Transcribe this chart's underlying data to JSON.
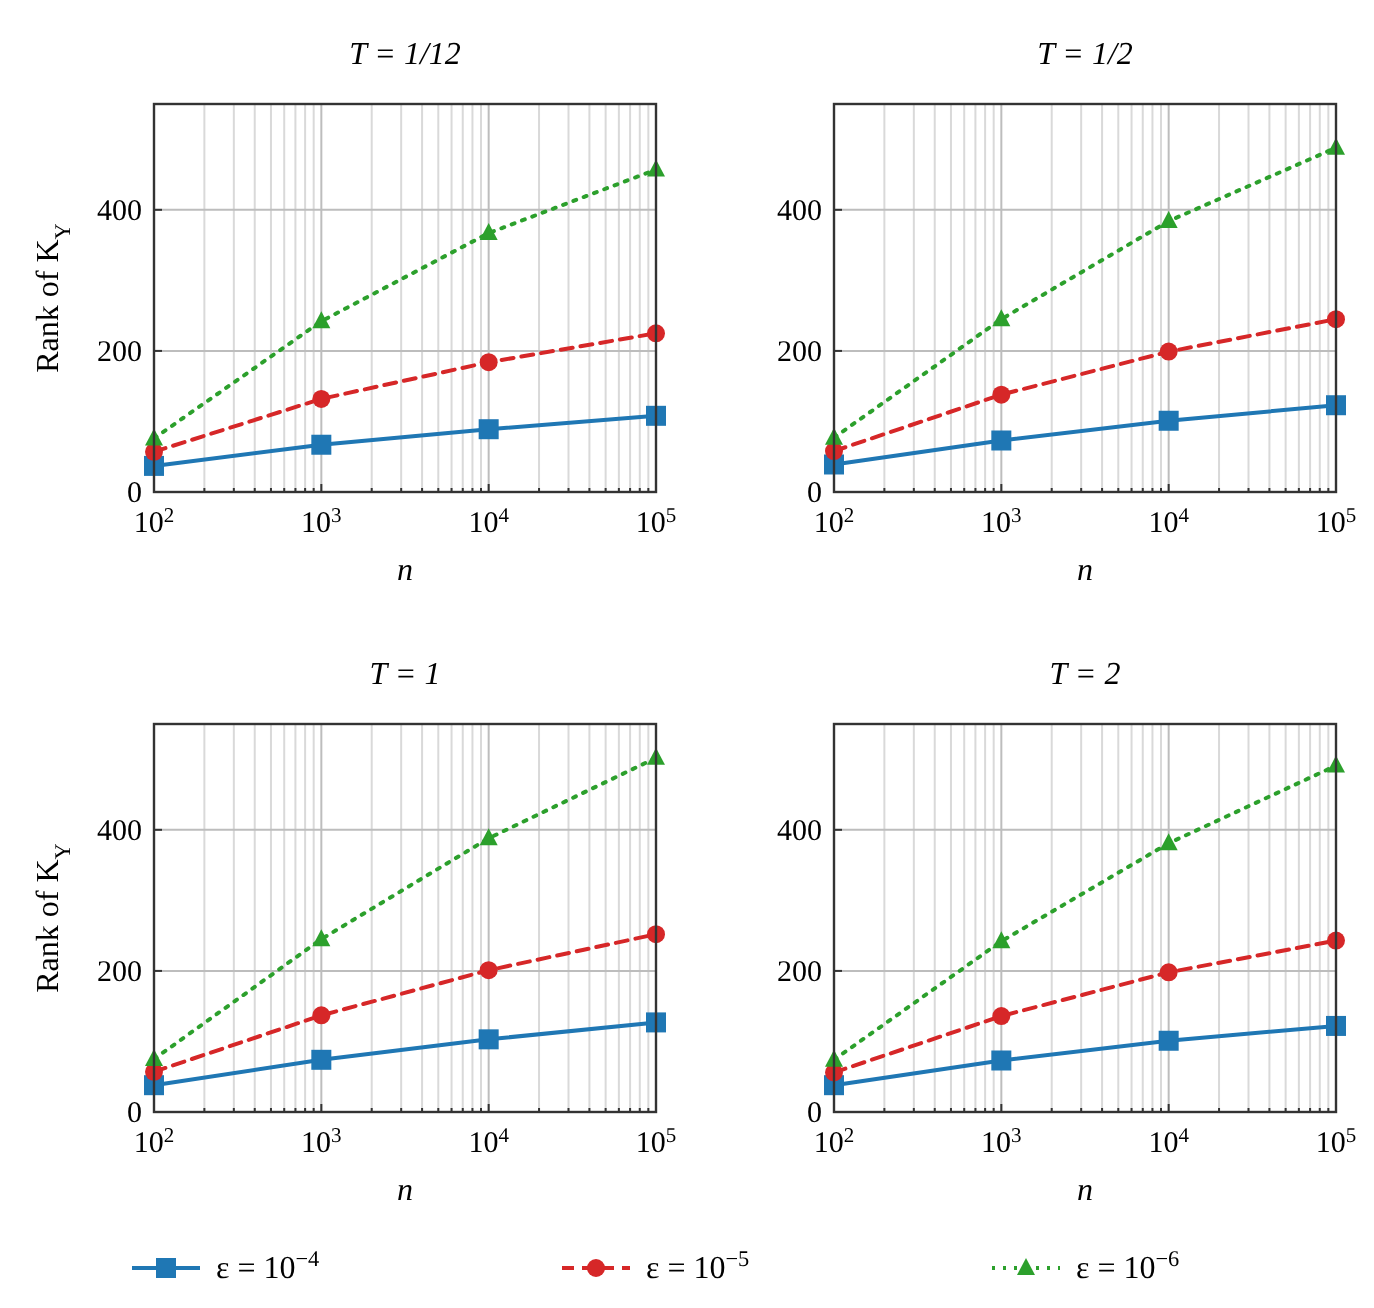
{
  "chart_data": [
    {
      "type": "line",
      "title": "T = 1/12",
      "xlabel": "n",
      "ylabel": "Rank of K$_{Y}$",
      "log": "x",
      "grid": true,
      "legend": "bottom",
      "x": [
        100,
        1000,
        10000,
        100000
      ],
      "xlim": [
        100,
        100000
      ],
      "ylim": [
        0,
        550
      ],
      "yticks": [
        0,
        200,
        400
      ],
      "xticks": [
        {
          "value": 100,
          "label": "10$^{2}$"
        },
        {
          "value": 200,
          "label": null
        },
        {
          "value": 300,
          "label": null
        },
        {
          "value": 400,
          "label": null
        },
        {
          "value": 500,
          "label": null
        },
        {
          "value": 600,
          "label": null
        },
        {
          "value": 700,
          "label": null
        },
        {
          "value": 800,
          "label": null
        },
        {
          "value": 900,
          "label": null
        },
        {
          "value": 1000,
          "label": "10$^{3}$"
        },
        {
          "value": 2000,
          "label": null
        },
        {
          "value": 3000,
          "label": null
        },
        {
          "value": 4000,
          "label": null
        },
        {
          "value": 5000,
          "label": null
        },
        {
          "value": 6000,
          "label": null
        },
        {
          "value": 7000,
          "label": null
        },
        {
          "value": 8000,
          "label": null
        },
        {
          "value": 9000,
          "label": null
        },
        {
          "value": 10000,
          "label": "10$^{4}$"
        },
        {
          "value": 20000,
          "label": null
        },
        {
          "value": 30000,
          "label": null
        },
        {
          "value": 40000,
          "label": null
        },
        {
          "value": 50000,
          "label": null
        },
        {
          "value": 60000,
          "label": null
        },
        {
          "value": 70000,
          "label": null
        },
        {
          "value": 80000,
          "label": null
        },
        {
          "value": 90000,
          "label": null
        },
        {
          "value": 100000,
          "label": "10$^{5}$"
        }
      ],
      "series": [
        {
          "name": "ε = 10$^{−4}$",
          "color": "#1f77b4",
          "marker": "square",
          "line_style": "solid",
          "values": [
            37,
            67,
            89,
            108
          ]
        },
        {
          "name": "ε = 10$^{−5}$",
          "color": "#d62728",
          "marker": "circle",
          "line_style": "dashed",
          "values": [
            57,
            132,
            184,
            225
          ]
        },
        {
          "name": "ε = 10$^{−6}$",
          "color": "#2ca02c",
          "marker": "triangle",
          "line_style": "dotted",
          "values": [
            76,
            242,
            367,
            457
          ]
        }
      ]
    },
    {
      "type": "line",
      "title": "T = 1/2",
      "xlabel": "n",
      "log": "x",
      "grid": true,
      "x": [
        100,
        1000,
        10000,
        100000
      ],
      "xlim": [
        100,
        100000
      ],
      "ylim": [
        0,
        550
      ],
      "yticks": [
        0,
        200,
        400
      ],
      "xticks": [
        {
          "value": 100,
          "label": "10$^{2}$"
        },
        {
          "value": 200,
          "label": null
        },
        {
          "value": 300,
          "label": null
        },
        {
          "value": 400,
          "label": null
        },
        {
          "value": 500,
          "label": null
        },
        {
          "value": 600,
          "label": null
        },
        {
          "value": 700,
          "label": null
        },
        {
          "value": 800,
          "label": null
        },
        {
          "value": 900,
          "label": null
        },
        {
          "value": 1000,
          "label": "10$^{3}$"
        },
        {
          "value": 2000,
          "label": null
        },
        {
          "value": 3000,
          "label": null
        },
        {
          "value": 4000,
          "label": null
        },
        {
          "value": 5000,
          "label": null
        },
        {
          "value": 6000,
          "label": null
        },
        {
          "value": 7000,
          "label": null
        },
        {
          "value": 8000,
          "label": null
        },
        {
          "value": 9000,
          "label": null
        },
        {
          "value": 10000,
          "label": "10$^{4}$"
        },
        {
          "value": 20000,
          "label": null
        },
        {
          "value": 30000,
          "label": null
        },
        {
          "value": 40000,
          "label": null
        },
        {
          "value": 50000,
          "label": null
        },
        {
          "value": 60000,
          "label": null
        },
        {
          "value": 70000,
          "label": null
        },
        {
          "value": 80000,
          "label": null
        },
        {
          "value": 90000,
          "label": null
        },
        {
          "value": 100000,
          "label": "10$^{5}$"
        }
      ],
      "series": [
        {
          "color": "#1f77b4",
          "marker": "square",
          "line_style": "solid",
          "values": [
            39,
            73,
            101,
            123
          ]
        },
        {
          "color": "#d62728",
          "marker": "circle",
          "line_style": "dashed",
          "values": [
            58,
            138,
            199,
            245
          ]
        },
        {
          "color": "#2ca02c",
          "marker": "triangle",
          "line_style": "dotted",
          "values": [
            77,
            245,
            384,
            488
          ]
        }
      ]
    },
    {
      "type": "line",
      "title": "T = 1",
      "xlabel": "n",
      "ylabel": "Rank of K$_{Y}$",
      "log": "x",
      "grid": true,
      "x": [
        100,
        1000,
        10000,
        100000
      ],
      "xlim": [
        100,
        100000
      ],
      "ylim": [
        0,
        550
      ],
      "yticks": [
        0,
        200,
        400
      ],
      "xticks": [
        {
          "value": 100,
          "label": "10$^{2}$"
        },
        {
          "value": 200,
          "label": null
        },
        {
          "value": 300,
          "label": null
        },
        {
          "value": 400,
          "label": null
        },
        {
          "value": 500,
          "label": null
        },
        {
          "value": 600,
          "label": null
        },
        {
          "value": 700,
          "label": null
        },
        {
          "value": 800,
          "label": null
        },
        {
          "value": 900,
          "label": null
        },
        {
          "value": 1000,
          "label": "10$^{3}$"
        },
        {
          "value": 2000,
          "label": null
        },
        {
          "value": 3000,
          "label": null
        },
        {
          "value": 4000,
          "label": null
        },
        {
          "value": 5000,
          "label": null
        },
        {
          "value": 6000,
          "label": null
        },
        {
          "value": 7000,
          "label": null
        },
        {
          "value": 8000,
          "label": null
        },
        {
          "value": 9000,
          "label": null
        },
        {
          "value": 10000,
          "label": "10$^{4}$"
        },
        {
          "value": 20000,
          "label": null
        },
        {
          "value": 30000,
          "label": null
        },
        {
          "value": 40000,
          "label": null
        },
        {
          "value": 50000,
          "label": null
        },
        {
          "value": 60000,
          "label": null
        },
        {
          "value": 70000,
          "label": null
        },
        {
          "value": 80000,
          "label": null
        },
        {
          "value": 90000,
          "label": null
        },
        {
          "value": 100000,
          "label": "10$^{5}$"
        }
      ],
      "series": [
        {
          "color": "#1f77b4",
          "marker": "square",
          "line_style": "solid",
          "values": [
            38,
            74,
            103,
            127
          ]
        },
        {
          "color": "#d62728",
          "marker": "circle",
          "line_style": "dashed",
          "values": [
            57,
            137,
            201,
            252
          ]
        },
        {
          "color": "#2ca02c",
          "marker": "triangle",
          "line_style": "dotted",
          "values": [
            75,
            245,
            388,
            502
          ]
        }
      ]
    },
    {
      "type": "line",
      "title": "T = 2",
      "xlabel": "n",
      "log": "x",
      "grid": true,
      "x": [
        100,
        1000,
        10000,
        100000
      ],
      "xlim": [
        100,
        100000
      ],
      "ylim": [
        0,
        550
      ],
      "yticks": [
        0,
        200,
        400
      ],
      "xticks": [
        {
          "value": 100,
          "label": "10$^{2}$"
        },
        {
          "value": 200,
          "label": null
        },
        {
          "value": 300,
          "label": null
        },
        {
          "value": 400,
          "label": null
        },
        {
          "value": 500,
          "label": null
        },
        {
          "value": 600,
          "label": null
        },
        {
          "value": 700,
          "label": null
        },
        {
          "value": 800,
          "label": null
        },
        {
          "value": 900,
          "label": null
        },
        {
          "value": 1000,
          "label": "10$^{3}$"
        },
        {
          "value": 2000,
          "label": null
        },
        {
          "value": 3000,
          "label": null
        },
        {
          "value": 4000,
          "label": null
        },
        {
          "value": 5000,
          "label": null
        },
        {
          "value": 6000,
          "label": null
        },
        {
          "value": 7000,
          "label": null
        },
        {
          "value": 8000,
          "label": null
        },
        {
          "value": 9000,
          "label": null
        },
        {
          "value": 10000,
          "label": "10$^{4}$"
        },
        {
          "value": 20000,
          "label": null
        },
        {
          "value": 30000,
          "label": null
        },
        {
          "value": 40000,
          "label": null
        },
        {
          "value": 50000,
          "label": null
        },
        {
          "value": 60000,
          "label": null
        },
        {
          "value": 70000,
          "label": null
        },
        {
          "value": 80000,
          "label": null
        },
        {
          "value": 90000,
          "label": null
        },
        {
          "value": 100000,
          "label": "10$^{5}$"
        }
      ],
      "series": [
        {
          "color": "#1f77b4",
          "marker": "square",
          "line_style": "solid",
          "values": [
            38,
            73,
            101,
            122
          ]
        },
        {
          "color": "#d62728",
          "marker": "circle",
          "line_style": "dashed",
          "values": [
            56,
            136,
            198,
            243
          ]
        },
        {
          "color": "#2ca02c",
          "marker": "triangle",
          "line_style": "dotted",
          "values": [
            74,
            242,
            381,
            491
          ]
        }
      ]
    }
  ]
}
